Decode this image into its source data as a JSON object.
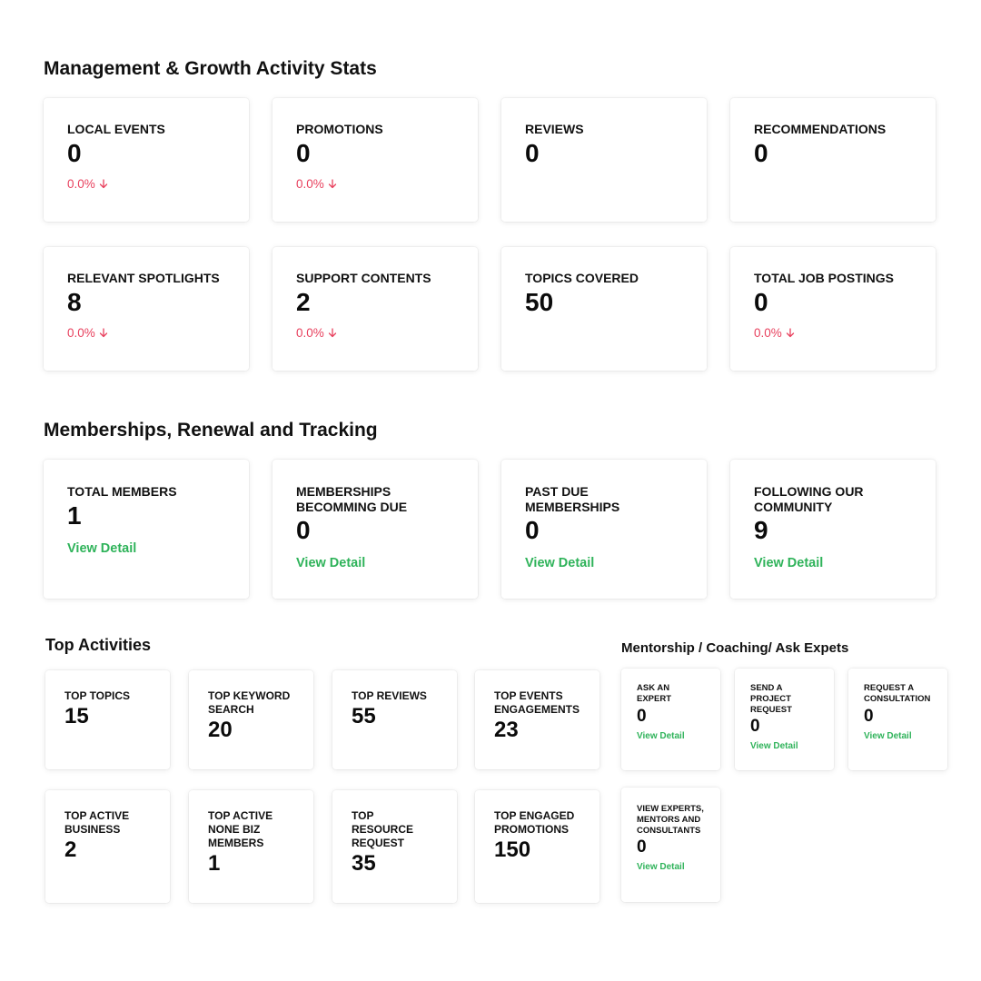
{
  "sections": {
    "management": "Management & Growth Activity Stats",
    "memberships": "Memberships, Renewal and Tracking",
    "top_activities": "Top Activities",
    "mentorship": "Mentorship / Coaching/ Ask Expets"
  },
  "colors": {
    "negative": "#e8415e",
    "link": "#2fb35a"
  },
  "view_detail_label": "View Detail",
  "management_stats": [
    {
      "label": "LOCAL EVENTS",
      "value": "0",
      "change": "0.0%",
      "trend": "down"
    },
    {
      "label": "PROMOTIONS",
      "value": "0",
      "change": "0.0%",
      "trend": "down"
    },
    {
      "label": "REVIEWS",
      "value": "0"
    },
    {
      "label": "RECOMMENDATIONS",
      "value": "0"
    },
    {
      "label": "RELEVANT SPOTLIGHTS",
      "value": "8",
      "change": "0.0%",
      "trend": "down"
    },
    {
      "label": "SUPPORT CONTENTS",
      "value": "2",
      "change": "0.0%",
      "trend": "down"
    },
    {
      "label": "TOPICS COVERED",
      "value": "50"
    },
    {
      "label": "TOTAL JOB POSTINGS",
      "value": "0",
      "change": "0.0%",
      "trend": "down"
    }
  ],
  "membership_stats": [
    {
      "label": "TOTAL MEMBERS",
      "value": "1"
    },
    {
      "label": "MEMBERSHIPS BECOMMING DUE",
      "value": "0"
    },
    {
      "label": "PAST DUE MEMBERSHIPS",
      "value": "0"
    },
    {
      "label": "FOLLOWING OUR COMMUNITY",
      "value": "9"
    }
  ],
  "top_activities": [
    {
      "label": "TOP TOPICS",
      "value": "15"
    },
    {
      "label": "TOP KEYWORD SEARCH",
      "value": "20"
    },
    {
      "label": "TOP REVIEWS",
      "value": "55"
    },
    {
      "label": "TOP EVENTS ENGAGEMENTS",
      "value": "23"
    },
    {
      "label": "TOP ACTIVE BUSINESS",
      "value": "2"
    },
    {
      "label": "TOP ACTIVE NONE BIZ MEMBERS",
      "value": "1"
    },
    {
      "label": "TOP RESOURCE REQUEST",
      "value": "35"
    },
    {
      "label": "TOP ENGAGED PROMOTIONS",
      "value": "150"
    }
  ],
  "mentorship": [
    {
      "label": "ASK AN EXPERT",
      "value": "0"
    },
    {
      "label": "SEND A PROJECT REQUEST",
      "value": "0"
    },
    {
      "label": "REQUEST A CONSULTATION",
      "value": "0"
    },
    {
      "label": "VIEW EXPERTS, MENTORS AND CONSULTANTS",
      "value": "0"
    }
  ]
}
